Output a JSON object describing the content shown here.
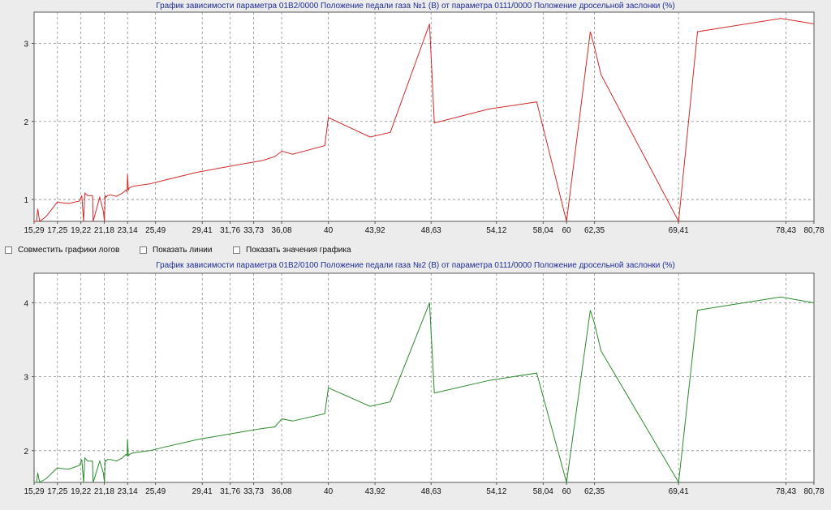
{
  "options": {
    "combine_logs": "Совместить графики логов",
    "show_lines": "Показать линии",
    "show_values": "Показать значения графика"
  },
  "chart_data": [
    {
      "type": "line",
      "title": "График зависимости параметра 01B2/0000 Положение педали газа №1 (В) от параметра 0111/0000 Положение дросельной заслонки (%)",
      "xlabel": "",
      "ylabel": "",
      "xticks": [
        "15,29",
        "17,25",
        "19,22",
        "21,18",
        "23,14",
        "25,49",
        "29,41",
        "31,76",
        "33,73",
        "36,08",
        "40",
        "43,92",
        "48,63",
        "54,12",
        "58,04",
        "60",
        "62,35",
        "69,41",
        "78,43",
        "80,78"
      ],
      "xtick_values": [
        15.29,
        17.25,
        19.22,
        21.18,
        23.14,
        25.49,
        29.41,
        31.76,
        33.73,
        36.08,
        40,
        43.92,
        48.63,
        54.12,
        58.04,
        60,
        62.35,
        69.41,
        78.43,
        80.78
      ],
      "yticks": [
        1,
        2,
        3
      ],
      "ylim": [
        0.72,
        3.4
      ],
      "grid": true,
      "color": "#d22a2a",
      "x": [
        15.29,
        15.5,
        15.6,
        15.75,
        16.3,
        17.25,
        17.5,
        18.2,
        19.1,
        19.3,
        19.45,
        19.55,
        19.8,
        20.2,
        20.25,
        20.8,
        21.1,
        21.2,
        21.25,
        21.35,
        21.45,
        21.7,
        22.2,
        22.7,
        23.0,
        23.1,
        23.14,
        23.2,
        23.3,
        23.6,
        25.0,
        26.3,
        29.0,
        32.6,
        34.5,
        35.5,
        36.1,
        37.0,
        39.7,
        40.0,
        43.5,
        45.2,
        48.5,
        48.9,
        53.5,
        57.5,
        60.0,
        62.0,
        62.35,
        62.9,
        69.41,
        71.0,
        78.0,
        80.78
      ],
      "y": [
        0.72,
        0.72,
        0.88,
        0.72,
        0.78,
        0.97,
        0.96,
        0.95,
        0.98,
        1.05,
        0.72,
        1.08,
        1.05,
        1.05,
        0.72,
        1.03,
        0.85,
        0.72,
        1.05,
        1.03,
        1.05,
        1.06,
        1.04,
        1.08,
        1.12,
        1.1,
        1.32,
        1.12,
        1.15,
        1.17,
        1.2,
        1.25,
        1.35,
        1.45,
        1.5,
        1.55,
        1.62,
        1.58,
        1.69,
        2.05,
        1.8,
        1.86,
        3.25,
        1.98,
        2.16,
        2.25,
        0.72,
        3.15,
        2.95,
        2.6,
        0.72,
        3.15,
        3.32,
        3.25
      ]
    },
    {
      "type": "line",
      "title": "График зависимости параметра 01B2/0100 Положение педали газа №2 (В) от параметра 0111/0000 Положение дросельной заслонки (%)",
      "xlabel": "",
      "ylabel": "",
      "xticks": [
        "15,29",
        "17,25",
        "19,22",
        "21,18",
        "23,14",
        "25,49",
        "29,41",
        "31,76",
        "33,73",
        "36,08",
        "40",
        "43,92",
        "48,63",
        "54,12",
        "58,04",
        "60",
        "62,35",
        "69,41",
        "78,43",
        "80,78"
      ],
      "xtick_values": [
        15.29,
        17.25,
        19.22,
        21.18,
        23.14,
        25.49,
        29.41,
        31.76,
        33.73,
        36.08,
        40,
        43.92,
        48.63,
        54.12,
        58.04,
        60,
        62.35,
        69.41,
        78.43,
        80.78
      ],
      "yticks": [
        2,
        3,
        4
      ],
      "ylim": [
        1.57,
        4.4
      ],
      "grid": true,
      "color": "#2a8a2a",
      "x": [
        15.29,
        15.5,
        15.6,
        15.75,
        16.3,
        17.25,
        17.5,
        18.2,
        19.1,
        19.3,
        19.45,
        19.55,
        19.8,
        20.2,
        20.25,
        20.8,
        21.1,
        21.2,
        21.25,
        21.35,
        21.45,
        21.7,
        22.2,
        22.7,
        23.0,
        23.1,
        23.14,
        23.2,
        23.3,
        23.6,
        25.0,
        26.3,
        29.0,
        32.6,
        34.5,
        35.5,
        36.1,
        37.0,
        39.7,
        40.0,
        43.5,
        45.2,
        48.5,
        48.9,
        53.5,
        57.5,
        60.0,
        62.0,
        62.35,
        62.9,
        69.41,
        71.0,
        78.0,
        80.78
      ],
      "y": [
        1.57,
        1.57,
        1.7,
        1.57,
        1.62,
        1.77,
        1.76,
        1.75,
        1.8,
        1.88,
        1.57,
        1.9,
        1.86,
        1.86,
        1.57,
        1.86,
        1.7,
        1.57,
        1.87,
        1.86,
        1.88,
        1.88,
        1.86,
        1.9,
        1.95,
        1.93,
        2.15,
        1.93,
        1.95,
        1.97,
        2.0,
        2.05,
        2.15,
        2.25,
        2.3,
        2.32,
        2.43,
        2.4,
        2.5,
        2.85,
        2.6,
        2.66,
        4.0,
        2.78,
        2.95,
        3.05,
        1.57,
        3.9,
        3.72,
        3.35,
        1.57,
        3.9,
        4.08,
        4.0
      ]
    }
  ]
}
